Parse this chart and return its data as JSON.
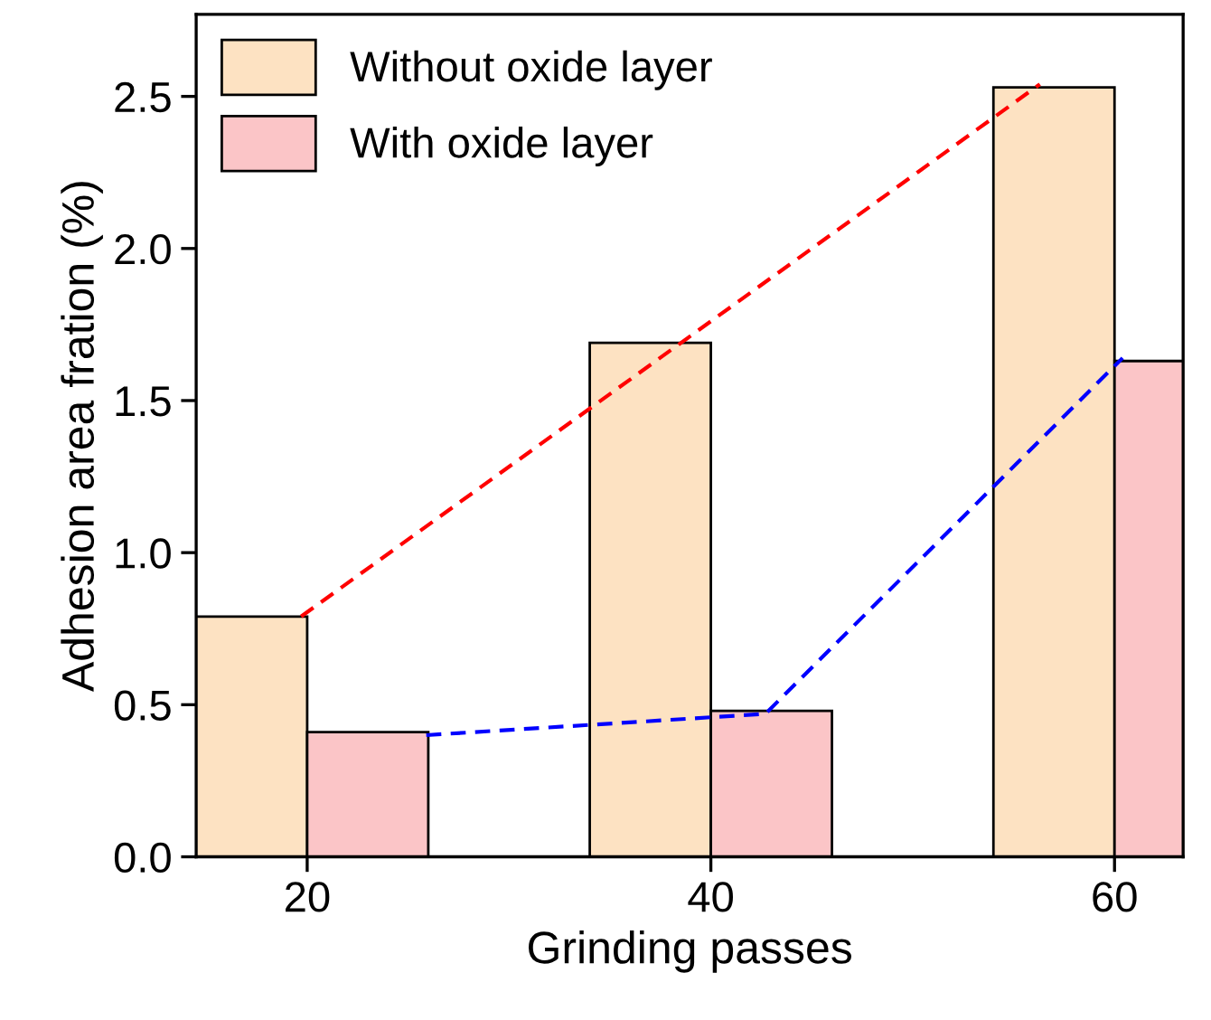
{
  "chart_data": {
    "type": "bar",
    "xlabel": "Grinding passes",
    "ylabel": "Adhesion area fration (%)",
    "series": [
      {
        "name": "Without oxide layer",
        "color": "#fde2c2",
        "values": [
          0.79,
          1.69,
          2.53
        ],
        "x": [
          17,
          37,
          57
        ]
      },
      {
        "name": "With oxide layer",
        "color": "#fbc5c7",
        "values": [
          0.41,
          0.48,
          1.63
        ],
        "x": [
          23,
          43,
          63
        ]
      },
      {
        "type": "line",
        "color": "#ff0000",
        "line_style": "dashed",
        "x": [
          19.7,
          56.3
        ],
        "values": [
          0.79,
          2.54
        ]
      },
      {
        "type": "line",
        "color": "#0000ff",
        "line_style": "dashed",
        "x": [
          25.9,
          42.7,
          60.4
        ],
        "values": [
          0.4,
          0.47,
          1.64
        ]
      }
    ],
    "xlim": [
      14.5,
      63.4
    ],
    "xticks": [
      20,
      40,
      60
    ],
    "ylim": [
      0,
      2.77
    ],
    "yticks": [
      {
        "value": 0,
        "label": "0.0"
      },
      0.5,
      {
        "value": 1,
        "label": "1.0"
      },
      1.5,
      {
        "value": 2,
        "label": "2.0"
      },
      2.5
    ],
    "grid": false,
    "legend": "top left"
  }
}
